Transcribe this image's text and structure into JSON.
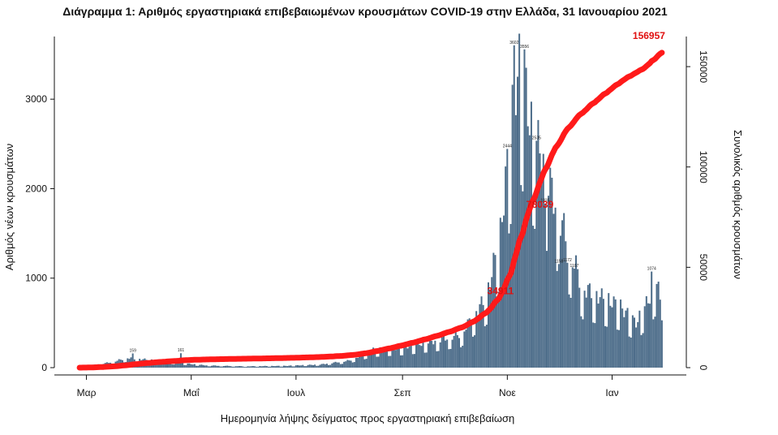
{
  "title": "Διάγραμμα 1: Αριθμός εργαστηριακά επιβεβαιωμένων κρουσμάτων COVID-19 στην Ελλάδα, 31 Ιανουαρίου 2021",
  "chart_data": {
    "type": "bar",
    "xlabel": "Ημερομηνία λήψης δείγματος προς εργαστηριακή επιβεβαίωση",
    "ylabel": "Αριθμός νέων κρουσμάτων",
    "y2label": "Συνολικός αριθμός κρουσμάτων",
    "x_tick_labels": [
      "Μαρ",
      "Μαΐ",
      "Ιουλ",
      "Σεπ",
      "Νοε",
      "Ιαν"
    ],
    "y_ticks": [
      0,
      1000,
      2000,
      3000
    ],
    "ylim": [
      0,
      3700
    ],
    "y2_ticks": [
      0,
      50000,
      100000,
      150000
    ],
    "y2lim": [
      0,
      165000
    ],
    "bar_color": "#4d6d8a",
    "line_color": "#ff1a1a",
    "start_date": "2020-02-26",
    "end_date": "2021-01-30",
    "daily_keypoints": [
      [
        "2020-02-26",
        5
      ],
      [
        "2020-03-05",
        30
      ],
      [
        "2020-03-15",
        60
      ],
      [
        "2020-03-25",
        110
      ],
      [
        "2020-04-05",
        90
      ],
      [
        "2020-04-20",
        60
      ],
      [
        "2020-05-10",
        25
      ],
      [
        "2020-06-01",
        15
      ],
      [
        "2020-06-25",
        20
      ],
      [
        "2020-07-15",
        35
      ],
      [
        "2020-08-01",
        80
      ],
      [
        "2020-08-15",
        200
      ],
      [
        "2020-09-01",
        230
      ],
      [
        "2020-09-20",
        300
      ],
      [
        "2020-10-05",
        380
      ],
      [
        "2020-10-20",
        800
      ],
      [
        "2020-10-28",
        1500
      ],
      [
        "2020-11-02",
        2500
      ],
      [
        "2020-11-06",
        3200
      ],
      [
        "2020-11-09",
        3400
      ],
      [
        "2020-11-15",
        2700
      ],
      [
        "2020-11-22",
        2300
      ],
      [
        "2020-11-30",
        1800
      ],
      [
        "2020-12-08",
        1300
      ],
      [
        "2020-12-15",
        900
      ],
      [
        "2020-12-25",
        800
      ],
      [
        "2021-01-05",
        700
      ],
      [
        "2021-01-15",
        500
      ],
      [
        "2021-01-22",
        750
      ],
      [
        "2021-01-27",
        1000
      ],
      [
        "2021-01-30",
        600
      ]
    ],
    "bar_value_labels": [
      {
        "date": "2020-11-05",
        "value": 3602
      },
      {
        "date": "2020-11-11",
        "value": 3556
      },
      {
        "date": "2020-11-18",
        "value": 2535
      },
      {
        "date": "2020-11-01",
        "value": 2444
      },
      {
        "date": "2020-11-23",
        "value": 1835
      },
      {
        "date": "2020-12-06",
        "value": 1172
      },
      {
        "date": "2020-12-10",
        "value": 1107
      },
      {
        "date": "2020-12-01",
        "value": 1158
      },
      {
        "date": "2021-01-24",
        "value": 1074
      },
      {
        "date": "2020-04-25",
        "value": 161
      },
      {
        "date": "2020-03-28",
        "value": 159
      }
    ],
    "highlight_labels": [
      {
        "date": "2021-01-30",
        "value": 156957
      },
      {
        "date": "2020-11-20",
        "value": 78039
      },
      {
        "date": "2020-10-28",
        "value": 34911
      }
    ]
  }
}
